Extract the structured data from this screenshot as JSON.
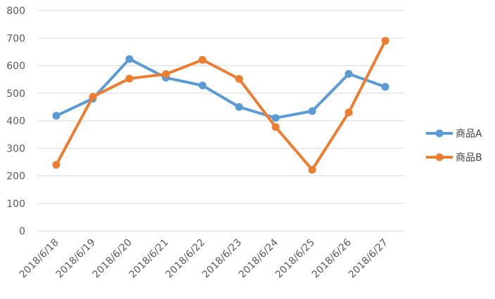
{
  "chart_data": {
    "type": "line",
    "categories": [
      "2018/6/18",
      "2018/6/19",
      "2018/6/20",
      "2018/6/21",
      "2018/6/22",
      "2018/6/23",
      "2018/6/24",
      "2018/6/25",
      "2018/6/26",
      "2018/6/27"
    ],
    "series": [
      {
        "name": "商品A",
        "color": "#5B9BD5",
        "values": [
          418,
          480,
          624,
          556,
          528,
          450,
          410,
          435,
          570,
          523
        ]
      },
      {
        "name": "商品B",
        "color": "#ED7D31",
        "values": [
          240,
          487,
          553,
          569,
          621,
          552,
          377,
          222,
          430,
          690
        ]
      }
    ],
    "yticks": [
      "0",
      "100",
      "200",
      "300",
      "400",
      "500",
      "600",
      "700",
      "800"
    ],
    "ylim": [
      0,
      800
    ],
    "grid": true,
    "legend_position": "right"
  }
}
